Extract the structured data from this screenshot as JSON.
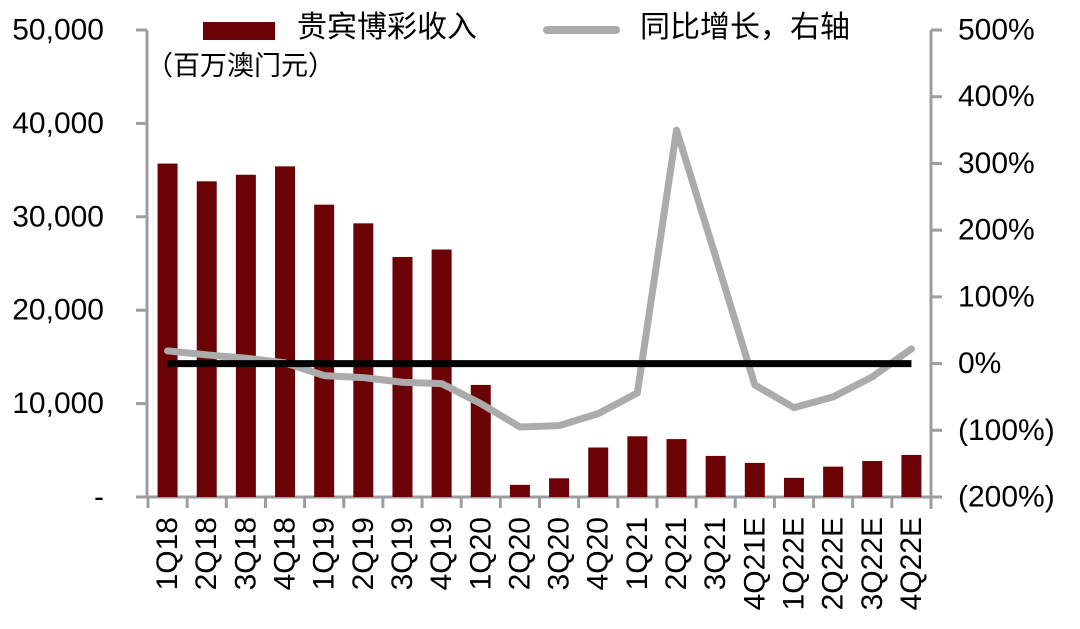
{
  "legend": {
    "bar_label": "贵宾博彩收入",
    "line_label": "同比增长，右轴"
  },
  "subtitle": "（百万澳门元）",
  "colors": {
    "bar": "#6b0206",
    "line": "#ababab",
    "zero_line": "#000000",
    "axis": "#9d9d9d",
    "text": "#000000"
  },
  "chart_data": {
    "type": "bar",
    "combo": "bar+line",
    "title": "",
    "categories": [
      "1Q18",
      "2Q18",
      "3Q18",
      "4Q18",
      "1Q19",
      "2Q19",
      "3Q19",
      "4Q19",
      "1Q20",
      "2Q20",
      "3Q20",
      "4Q20",
      "1Q21",
      "2Q21",
      "3Q21",
      "4Q21E",
      "1Q22E",
      "2Q22E",
      "3Q22E",
      "4Q22E"
    ],
    "series": [
      {
        "name": "贵宾博彩收入",
        "type": "bar",
        "axis": "left",
        "unit": "百万澳门元",
        "values": [
          35700,
          33800,
          34500,
          35400,
          31300,
          29300,
          25700,
          26500,
          12000,
          1300,
          2000,
          5300,
          6500,
          6200,
          4400,
          3650,
          2050,
          3250,
          3850,
          4500
        ]
      },
      {
        "name": "同比增长，右轴",
        "type": "line",
        "axis": "right",
        "unit": "%",
        "values": [
          19,
          13,
          8,
          1,
          -18,
          -21,
          -28,
          -30,
          -60,
          -95,
          -93,
          -75,
          -44,
          350,
          160,
          -32,
          -66,
          -50,
          -20,
          22
        ]
      },
      {
        "name": "零线",
        "type": "line",
        "axis": "right",
        "unit": "%",
        "constant": 0
      }
    ],
    "left_axis": {
      "min": 0,
      "max": 50000,
      "step": 10000,
      "tick_labels": [
        "50,000",
        "40,000",
        "30,000",
        "20,000",
        "10,000",
        "-"
      ]
    },
    "right_axis": {
      "min": -200,
      "max": 500,
      "step": 100,
      "tick_labels": [
        "500%",
        "400%",
        "300%",
        "200%",
        "100%",
        "0%",
        "(100%)",
        "(200%)"
      ]
    },
    "grid": false,
    "legend_position": "top"
  }
}
